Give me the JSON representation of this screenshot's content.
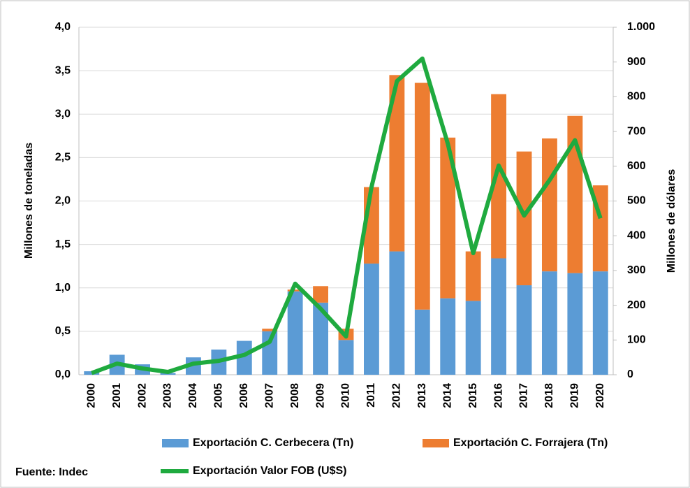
{
  "chart_data": {
    "type": "bar",
    "categories": [
      "2000",
      "2001",
      "2002",
      "2003",
      "2004",
      "2005",
      "2006",
      "2007",
      "2008",
      "2009",
      "2010",
      "2011",
      "2012",
      "2013",
      "2014",
      "2015",
      "2016",
      "2017",
      "2018",
      "2019",
      "2020"
    ],
    "series": [
      {
        "name": "Exportación C. Cerbecera (Tn)",
        "color": "#5b9bd5",
        "type": "bar",
        "values": [
          0.04,
          0.23,
          0.12,
          0.02,
          0.2,
          0.29,
          0.39,
          0.5,
          0.96,
          0.83,
          0.4,
          1.28,
          1.42,
          0.75,
          0.88,
          0.85,
          1.34,
          1.03,
          1.19,
          1.17,
          1.19
        ]
      },
      {
        "name": "Exportación C. Forrajera (Tn)",
        "color": "#ed7d31",
        "type": "bar",
        "values": [
          0,
          0,
          0,
          0,
          0,
          0,
          0,
          0.03,
          0.02,
          0.19,
          0.13,
          0.88,
          2.03,
          2.61,
          1.85,
          0.57,
          1.89,
          1.54,
          1.53,
          1.81,
          0.99
        ]
      },
      {
        "name": "Exportación Valor FOB (U$S)",
        "color": "#1faa3f",
        "type": "line",
        "axis": "y2",
        "values": [
          5,
          32,
          18,
          8,
          32,
          40,
          57,
          95,
          262,
          190,
          110,
          540,
          845,
          910,
          665,
          350,
          602,
          458,
          560,
          675,
          450
        ]
      }
    ],
    "stacked": true,
    "ylabel": "Millones de toneladas",
    "y2label": "Millones de dólares",
    "ylim": [
      0,
      4
    ],
    "yticks": [
      {
        "value": 0,
        "label": "0,0"
      },
      {
        "value": 0.5,
        "label": "0,5"
      },
      {
        "value": 1,
        "label": "1,0"
      },
      {
        "value": 1.5,
        "label": "1,5"
      },
      {
        "value": 2,
        "label": "2,0"
      },
      {
        "value": 2.5,
        "label": "2,5"
      },
      {
        "value": 3,
        "label": "3,0"
      },
      {
        "value": 3.5,
        "label": "3,5"
      },
      {
        "value": 4,
        "label": "4,0"
      }
    ],
    "y2lim": [
      0,
      1000
    ],
    "y2ticks": [
      0,
      100,
      200,
      300,
      400,
      500,
      600,
      700,
      800,
      900,
      {
        "value": 1000,
        "label": "1.000"
      }
    ],
    "grid": true,
    "legend": "bottom",
    "source": "Fuente: Indec"
  }
}
